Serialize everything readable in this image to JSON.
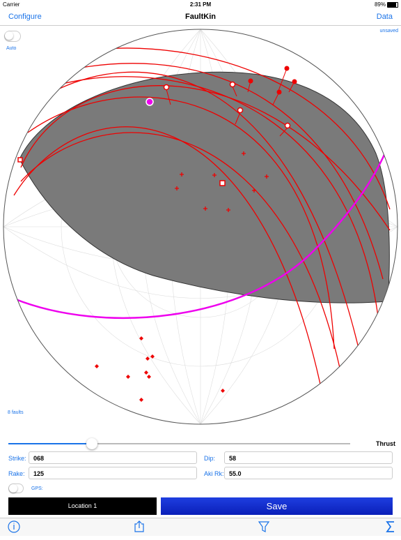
{
  "status_bar": {
    "carrier": "Carrier",
    "time": "2:31 PM",
    "battery": "89%"
  },
  "nav_bar": {
    "left": "Configure",
    "title": "FaultKin",
    "right": "Data"
  },
  "plot": {
    "auto": "Auto",
    "status": "unsaved",
    "count": "8 faults"
  },
  "controls": {
    "slider_label": "Thrust",
    "strike_label": "Strike:",
    "strike": "068",
    "dip_label": "Dip:",
    "dip": "58",
    "rake_label": "Rake:",
    "rake": "125",
    "aki_label": "Aki Rk:",
    "aki": "55.0",
    "gps_label": "GPS:",
    "location_button": "Location 1",
    "save_button": "Save"
  }
}
